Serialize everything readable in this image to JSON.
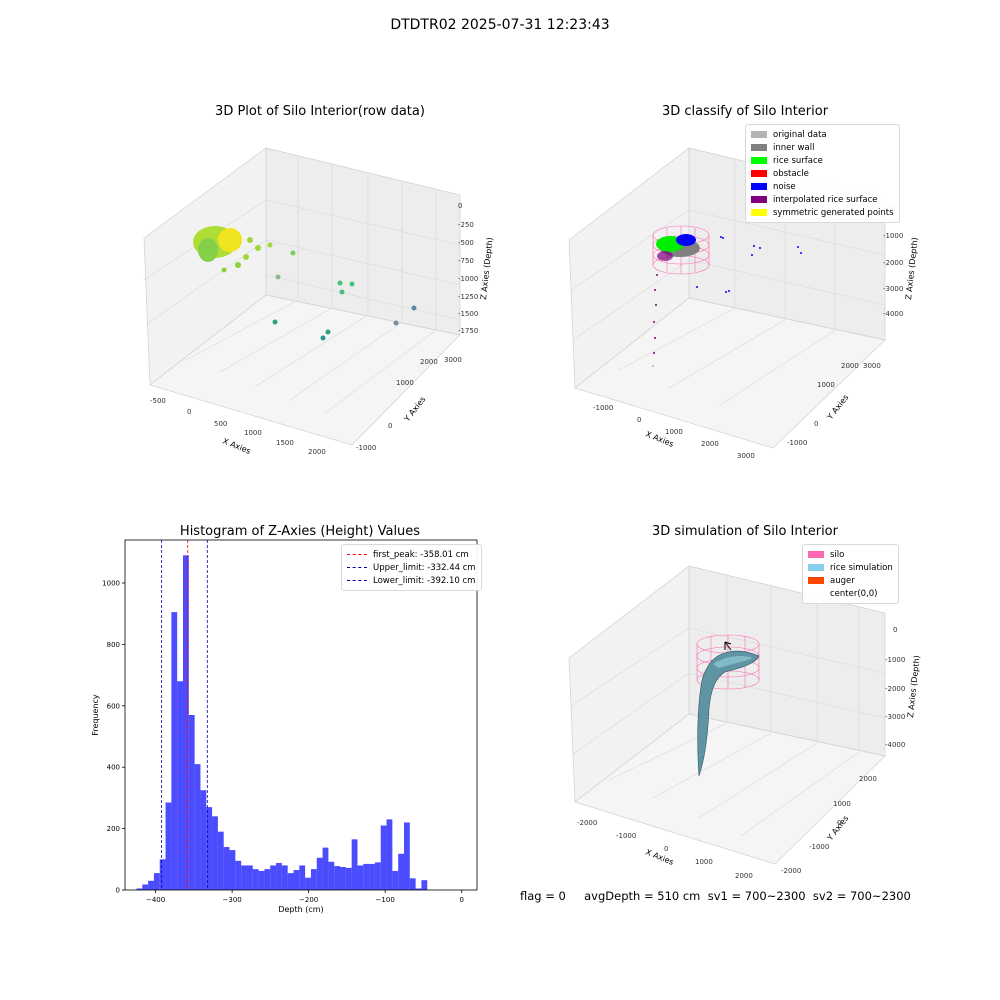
{
  "figure": {
    "suptitle": "DTDTR02 2025-07-31 12:23:43"
  },
  "panels": {
    "raw": {
      "title": "3D Plot of Silo Interior(row data)",
      "xlabel": "X Axies",
      "ylabel": "Y Axies",
      "zlabel": "Z Axies (Depth)",
      "xticks": [
        "-500",
        "0",
        "500",
        "1000",
        "1500",
        "2000"
      ],
      "yticks": [
        "-1000",
        "0",
        "1000",
        "2000",
        "3000"
      ],
      "zticks": [
        "0",
        "-250",
        "-500",
        "-750",
        "-1000",
        "-1250",
        "-1500",
        "-1750"
      ]
    },
    "classify": {
      "title": "3D classify of Silo Interior",
      "xlabel": "X Axies",
      "ylabel": "Y Axies",
      "zlabel": "Z Axies (Depth)",
      "xticks": [
        "-1000",
        "0",
        "1000",
        "2000",
        "3000"
      ],
      "yticks": [
        "-1000",
        "0",
        "1000",
        "2000",
        "3000"
      ],
      "zticks": [
        "0",
        "-1000",
        "-2000",
        "-3000",
        "-4000"
      ],
      "legend": [
        {
          "label": "original data",
          "color": "#b3b3b3"
        },
        {
          "label": "inner wall",
          "color": "#808080"
        },
        {
          "label": "rice surface",
          "color": "#00ff00"
        },
        {
          "label": "obstacle",
          "color": "#ff0000"
        },
        {
          "label": "noise",
          "color": "#0000ff"
        },
        {
          "label": "interpolated rice surface",
          "color": "#800080"
        },
        {
          "label": "symmetric generated points",
          "color": "#ffff00"
        }
      ]
    },
    "histogram": {
      "title": "Histogram of Z-Axies (Height) Values",
      "xlabel": "Depth (cm)",
      "ylabel": "Frequency",
      "legend": [
        {
          "label": "first_peak: -358.01 cm",
          "color": "#ff0000"
        },
        {
          "label": "Upper_limit: -332.44 cm",
          "color": "#0000aa"
        },
        {
          "label": "Lower_limit: -392.10 cm",
          "color": "#0000aa"
        }
      ]
    },
    "simulation": {
      "title": "3D simulation of Silo Interior",
      "xlabel": "X Axies",
      "ylabel": "Y Axies",
      "zlabel": "Z Axies (Depth)",
      "xticks": [
        "-2000",
        "-1000",
        "0",
        "1000",
        "2000"
      ],
      "yticks": [
        "-2000",
        "-1000",
        "0",
        "1000",
        "2000"
      ],
      "zticks": [
        "0",
        "-1000",
        "-2000",
        "-3000",
        "-4000"
      ],
      "legend": [
        {
          "label": "silo",
          "color": "#ff69b4"
        },
        {
          "label": "rice simulation",
          "color": "#87ceeb"
        },
        {
          "label": "auger",
          "color": "#ff4500"
        },
        {
          "label": "center(0,0)",
          "color": "#ffffff"
        }
      ]
    }
  },
  "footer": {
    "text": "flag = 0     avgDepth = 510 cm  sv1 = 700~2300  sv2 = 700~2300"
  },
  "chart_data": [
    {
      "type": "scatter",
      "title": "3D Plot of Silo Interior(row data)",
      "xlabel": "X Axies",
      "ylabel": "Y Axies",
      "zlabel": "Z Axies (Depth)",
      "xlim": [
        -600,
        2200
      ],
      "ylim": [
        -1000,
        3200
      ],
      "zlim": [
        -1900,
        0
      ],
      "grid": true
    },
    {
      "type": "scatter",
      "title": "3D classify of Silo Interior",
      "xlabel": "X Axies",
      "ylabel": "Y Axies",
      "zlabel": "Z Axies (Depth)",
      "series": [
        {
          "name": "original data"
        },
        {
          "name": "inner wall"
        },
        {
          "name": "rice surface"
        },
        {
          "name": "obstacle"
        },
        {
          "name": "noise"
        },
        {
          "name": "interpolated rice surface"
        },
        {
          "name": "symmetric generated points"
        }
      ],
      "legend_position": "top-right",
      "grid": true
    },
    {
      "type": "bar",
      "title": "Histogram of Z-Axies (Height) Values",
      "xlabel": "Depth (cm)",
      "ylabel": "Frequency",
      "bin_start": -425,
      "bin_width": 7.6,
      "values": [
        5,
        18,
        30,
        55,
        100,
        285,
        905,
        680,
        1090,
        570,
        410,
        325,
        270,
        240,
        190,
        140,
        130,
        95,
        80,
        80,
        68,
        62,
        68,
        80,
        88,
        80,
        55,
        65,
        80,
        40,
        68,
        105,
        138,
        92,
        78,
        75,
        72,
        165,
        80,
        85,
        85,
        90,
        210,
        230,
        62,
        118,
        220,
        38,
        5,
        32
      ],
      "xlim": [
        -440,
        20
      ],
      "ylim": [
        0,
        1140
      ],
      "xticks": [
        -400,
        -300,
        -200,
        -100,
        0
      ],
      "yticks": [
        0,
        200,
        400,
        600,
        800,
        1000
      ],
      "vlines": [
        {
          "name": "first_peak",
          "x": -358.01,
          "color": "#ff0000"
        },
        {
          "name": "Upper_limit",
          "x": -332.44,
          "color": "#0000aa"
        },
        {
          "name": "Lower_limit",
          "x": -392.1,
          "color": "#0000aa"
        }
      ],
      "legend_position": "top-right"
    },
    {
      "type": "area",
      "title": "3D simulation of Silo Interior",
      "xlabel": "X Axies",
      "ylabel": "Y Axies",
      "zlabel": "Z Axies (Depth)",
      "series": [
        {
          "name": "silo"
        },
        {
          "name": "rice simulation"
        },
        {
          "name": "auger"
        },
        {
          "name": "center(0,0)"
        }
      ],
      "legend_position": "top-right",
      "grid": true
    }
  ]
}
